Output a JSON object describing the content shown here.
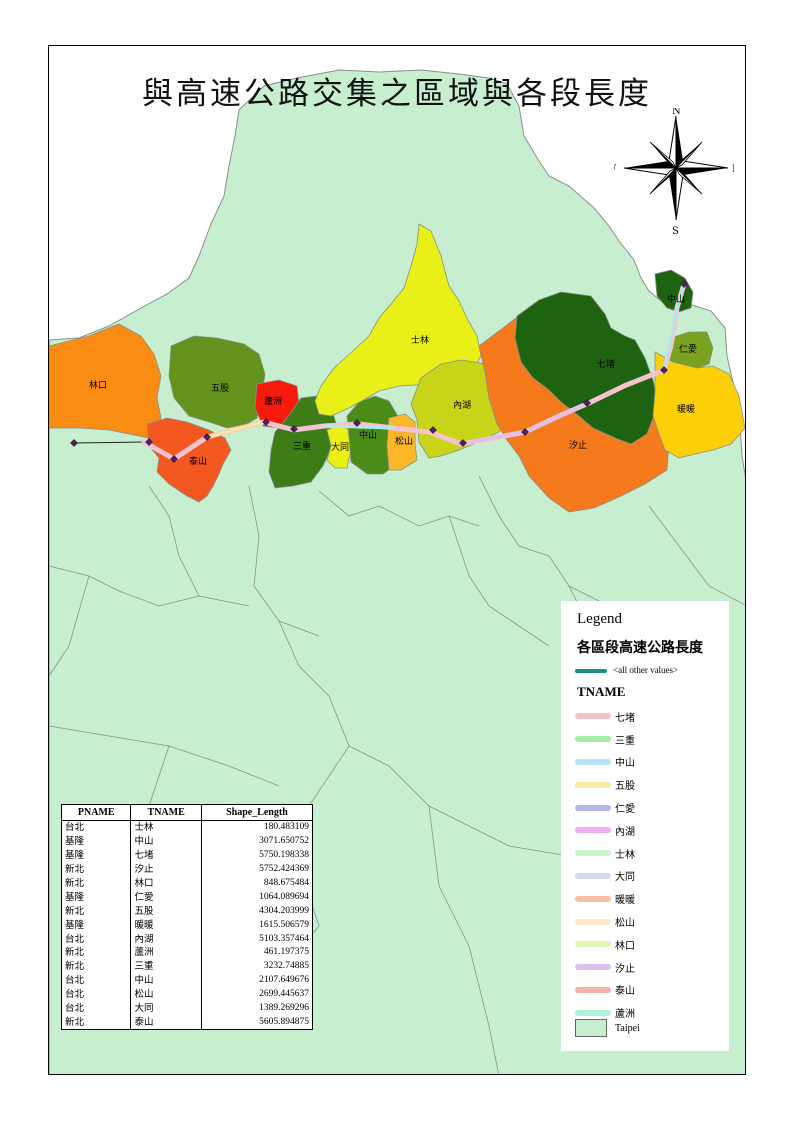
{
  "title": "與高速公路交集之區域與各段長度",
  "compass": {
    "n": "N",
    "s": "S",
    "e": "E",
    "w": "W"
  },
  "colors": {
    "land": "#c7efcf",
    "boundary": "#8a8f8b",
    "other_values": "#1c8f7e"
  },
  "districts": [
    {
      "name": "林口",
      "color": "#fa8c14"
    },
    {
      "name": "五股",
      "color": "#63931c"
    },
    {
      "name": "蘆洲",
      "color": "#f51a0a"
    },
    {
      "name": "泰山",
      "color": "#f2581f"
    },
    {
      "name": "三重",
      "color": "#3e7c18"
    },
    {
      "name": "大同",
      "color": "#eaf013"
    },
    {
      "name": "中山",
      "color": "#4b8c19"
    },
    {
      "name": "松山",
      "color": "#fcb62a"
    },
    {
      "name": "士林",
      "color": "#e9f017"
    },
    {
      "name": "內湖",
      "color": "#c8d417"
    },
    {
      "name": "汐止",
      "color": "#f57a1b"
    },
    {
      "name": "七堵",
      "color": "#1e6310"
    },
    {
      "name": "仁愛",
      "color": "#7ba21f"
    },
    {
      "name": "暖暖",
      "color": "#fccf08"
    }
  ],
  "legend": {
    "title": "Legend",
    "subtitle": "各區段高速公路長度",
    "other_values_label": "<all other values>",
    "field": "TNAME",
    "items": [
      {
        "label": "七堵",
        "color": "#f5c2c8"
      },
      {
        "label": "三重",
        "color": "#a7eda4"
      },
      {
        "label": "中山",
        "color": "#b4e3f2"
      },
      {
        "label": "五股",
        "color": "#f8ea9f"
      },
      {
        "label": "仁愛",
        "color": "#b3b7ec"
      },
      {
        "label": "內湖",
        "color": "#ecaeef"
      },
      {
        "label": "士林",
        "color": "#cbf5ce"
      },
      {
        "label": "大同",
        "color": "#d3dbf4"
      },
      {
        "label": "暖暖",
        "color": "#f5c0a3"
      },
      {
        "label": "松山",
        "color": "#fbeac8"
      },
      {
        "label": "林口",
        "color": "#e0f5b0"
      },
      {
        "label": "汐止",
        "color": "#dcc1ee"
      },
      {
        "label": "泰山",
        "color": "#f2b3ac"
      },
      {
        "label": "蘆洲",
        "color": "#b0f1dc"
      }
    ],
    "area_label": "Taipei"
  },
  "table": {
    "headers": [
      "PNAME",
      "TNAME",
      "Shape_Length"
    ],
    "rows": [
      [
        "台北",
        "士林",
        "180.483109"
      ],
      [
        "基隆",
        "中山",
        "3071.650752"
      ],
      [
        "基隆",
        "七堵",
        "5750.198338"
      ],
      [
        "新北",
        "汐止",
        "5752.424369"
      ],
      [
        "新北",
        "林口",
        "848.675484"
      ],
      [
        "基隆",
        "仁愛",
        "1064.089694"
      ],
      [
        "新北",
        "五股",
        "4304.203999"
      ],
      [
        "基隆",
        "暖暖",
        "1615.506579"
      ],
      [
        "台北",
        "內湖",
        "5103.357464"
      ],
      [
        "新北",
        "蘆洲",
        "461.197375"
      ],
      [
        "新北",
        "三重",
        "3232.74885"
      ],
      [
        "台北",
        "中山",
        "2107.649676"
      ],
      [
        "台北",
        "松山",
        "2699.445637"
      ],
      [
        "台北",
        "大同",
        "1389.269296"
      ],
      [
        "新北",
        "泰山",
        "5605.894875"
      ]
    ]
  }
}
